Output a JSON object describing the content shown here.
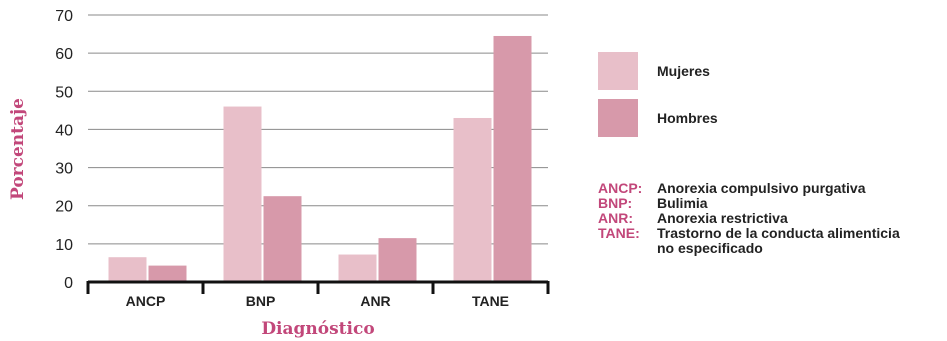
{
  "colors": {
    "mujeres": "#e8bfc9",
    "hombres": "#d799aa",
    "accent": "#c2477a",
    "grid": "#8a8a8a",
    "axis": "#111111"
  },
  "chart_data": {
    "type": "bar",
    "xlabel": "Diagnóstico",
    "ylabel": "Porcentaje",
    "ylim": [
      0,
      70
    ],
    "yticks": [
      0,
      10,
      20,
      30,
      40,
      50,
      60,
      70
    ],
    "categories": [
      "ANCP",
      "BNP",
      "ANR",
      "TANE"
    ],
    "series": [
      {
        "name": "Mujeres",
        "values": [
          6.5,
          46,
          7.2,
          43
        ]
      },
      {
        "name": "Hombres",
        "values": [
          4.3,
          22.5,
          11.5,
          64.5
        ]
      }
    ],
    "grid": true,
    "legend_position": "right"
  },
  "legend": {
    "items": [
      {
        "label": "Mujeres",
        "color_key": "mujeres"
      },
      {
        "label": "Hombres",
        "color_key": "hombres"
      }
    ]
  },
  "abbreviations": [
    {
      "key": "ANCP:",
      "lines": [
        "Anorexia compulsivo purgativa"
      ]
    },
    {
      "key": "BNP:",
      "lines": [
        "Bulimia"
      ]
    },
    {
      "key": "ANR:",
      "lines": [
        "Anorexia restrictiva"
      ]
    },
    {
      "key": "TANE:",
      "lines": [
        "Trastorno de la conducta alimenticia",
        "no especificado"
      ]
    }
  ]
}
